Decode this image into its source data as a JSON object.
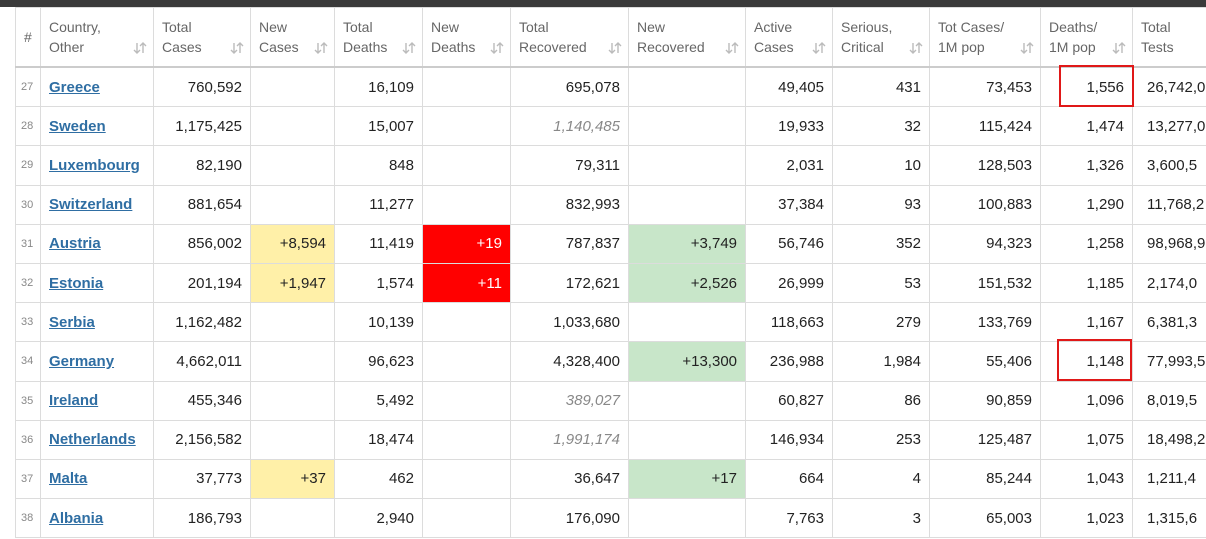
{
  "table": {
    "headers": [
      [
        "#"
      ],
      [
        "Country,",
        "Other"
      ],
      [
        "Total",
        "Cases"
      ],
      [
        "New",
        "Cases"
      ],
      [
        "Total",
        "Deaths"
      ],
      [
        "New",
        "Deaths"
      ],
      [
        "Total",
        "Recovered"
      ],
      [
        "New",
        "Recovered"
      ],
      [
        "Active",
        "Cases"
      ],
      [
        "Serious,",
        "Critical"
      ],
      [
        "Tot Cases/",
        "1M pop"
      ],
      [
        "Deaths/",
        "1M pop"
      ],
      [
        "Total",
        "Tests"
      ]
    ],
    "rows": [
      [
        "27",
        "Greece",
        "760,592",
        "",
        "16,109",
        "",
        "695,078",
        "",
        "49,405",
        "431",
        "73,453",
        "1,556",
        "26,742,0"
      ],
      [
        "28",
        "Sweden",
        "1,175,425",
        "",
        "15,007",
        "",
        "1,140,485",
        "",
        "19,933",
        "32",
        "115,424",
        "1,474",
        "13,277,0"
      ],
      [
        "29",
        "Luxembourg",
        "82,190",
        "",
        "848",
        "",
        "79,311",
        "",
        "2,031",
        "10",
        "128,503",
        "1,326",
        "3,600,5"
      ],
      [
        "30",
        "Switzerland",
        "881,654",
        "",
        "11,277",
        "",
        "832,993",
        "",
        "37,384",
        "93",
        "100,883",
        "1,290",
        "11,768,2"
      ],
      [
        "31",
        "Austria",
        "856,002",
        "+8,594",
        "11,419",
        "+19",
        "787,837",
        "+3,749",
        "56,746",
        "352",
        "94,323",
        "1,258",
        "98,968,9"
      ],
      [
        "32",
        "Estonia",
        "201,194",
        "+1,947",
        "1,574",
        "+11",
        "172,621",
        "+2,526",
        "26,999",
        "53",
        "151,532",
        "1,185",
        "2,174,0"
      ],
      [
        "33",
        "Serbia",
        "1,162,482",
        "",
        "10,139",
        "",
        "1,033,680",
        "",
        "118,663",
        "279",
        "133,769",
        "1,167",
        "6,381,3"
      ],
      [
        "34",
        "Germany",
        "4,662,011",
        "",
        "96,623",
        "",
        "4,328,400",
        "+13,300",
        "236,988",
        "1,984",
        "55,406",
        "1,148",
        "77,993,5"
      ],
      [
        "35",
        "Ireland",
        "455,346",
        "",
        "5,492",
        "",
        "389,027",
        "",
        "60,827",
        "86",
        "90,859",
        "1,096",
        "8,019,5"
      ],
      [
        "36",
        "Netherlands",
        "2,156,582",
        "",
        "18,474",
        "",
        "1,991,174",
        "",
        "146,934",
        "253",
        "125,487",
        "1,075",
        "18,498,2"
      ],
      [
        "37",
        "Malta",
        "37,773",
        "+37",
        "462",
        "",
        "36,647",
        "+17",
        "664",
        "4",
        "85,244",
        "1,043",
        "1,211,4"
      ],
      [
        "38",
        "Albania",
        "186,793",
        "",
        "2,940",
        "",
        "176,090",
        "",
        "7,763",
        "3",
        "65,003",
        "1,023",
        "1,315,6"
      ]
    ]
  }
}
